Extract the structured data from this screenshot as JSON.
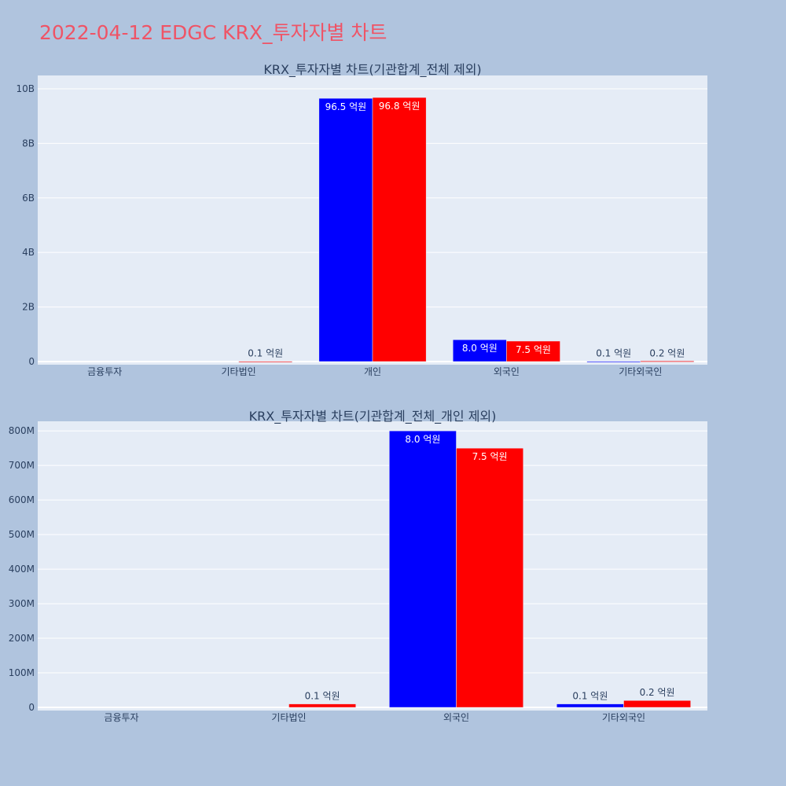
{
  "page": {
    "title": "2022-04-12 EDGC KRX_투자자별 차트",
    "background": "#b0c4de",
    "title_color": "#ef5466"
  },
  "colors": {
    "plot_bg": "#e5ecf6",
    "grid": "#ffffff",
    "text": "#2a3f5f",
    "series_1": "#0000ff",
    "series_2": "#ff0000"
  },
  "chart_data": [
    {
      "type": "bar",
      "title": "KRX_투자자별 차트(기관합계_전체 제외)",
      "categories": [
        "금융투자",
        "기타법인",
        "개인",
        "외국인",
        "기타외국인"
      ],
      "series": [
        {
          "color": "#0000ff",
          "values": [
            0,
            0,
            9650000000,
            800000000,
            10000000
          ],
          "labels": [
            "",
            "",
            "96.5 억원",
            "8.0 억원",
            "0.1 억원"
          ]
        },
        {
          "color": "#ff0000",
          "values": [
            0,
            10000000,
            9680000000,
            750000000,
            20000000
          ],
          "labels": [
            "",
            "0.1 억원",
            "96.8 억원",
            "7.5 억원",
            "0.2 억원"
          ]
        }
      ],
      "yticks": [
        0,
        2000000000,
        4000000000,
        6000000000,
        8000000000,
        10000000000
      ],
      "ytick_labels": [
        "0",
        "2B",
        "4B",
        "6B",
        "8B",
        "10B"
      ],
      "ylim": [
        0,
        10200000000
      ],
      "grid": true,
      "xlabel": "",
      "ylabel": ""
    },
    {
      "type": "bar",
      "title": "KRX_투자자별 차트(기관합계_전체_개인 제외)",
      "categories": [
        "금융투자",
        "기타법인",
        "외국인",
        "기타외국인"
      ],
      "series": [
        {
          "color": "#0000ff",
          "values": [
            0,
            0,
            800000000,
            10000000
          ],
          "labels": [
            "",
            "",
            "8.0 억원",
            "0.1 억원"
          ]
        },
        {
          "color": "#ff0000",
          "values": [
            0,
            10000000,
            750000000,
            20000000
          ],
          "labels": [
            "",
            "0.1 억원",
            "7.5 억원",
            "0.2 억원"
          ]
        }
      ],
      "yticks": [
        0,
        100000000,
        200000000,
        300000000,
        400000000,
        500000000,
        600000000,
        700000000,
        800000000
      ],
      "ytick_labels": [
        "0",
        "100M",
        "200M",
        "300M",
        "400M",
        "500M",
        "600M",
        "700M",
        "800M"
      ],
      "ylim": [
        0,
        805000000
      ],
      "grid": true,
      "xlabel": "",
      "ylabel": ""
    }
  ]
}
